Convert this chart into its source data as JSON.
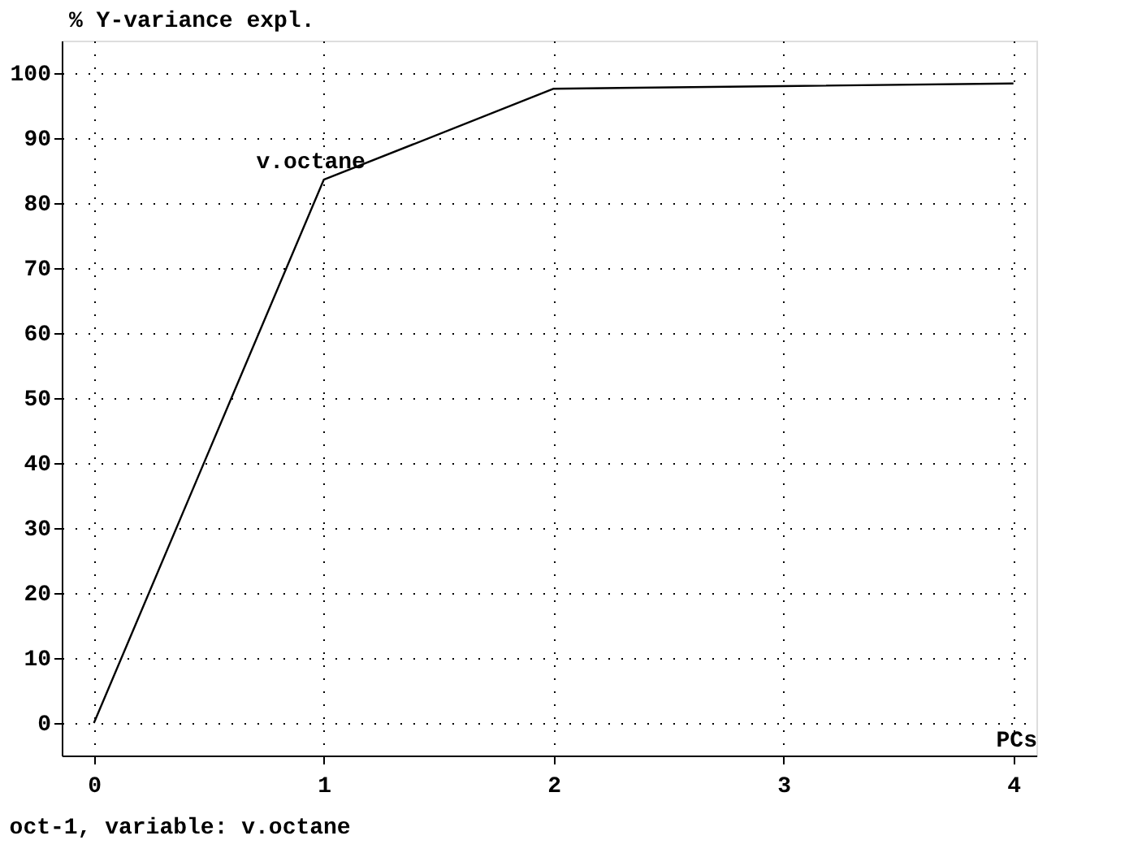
{
  "chart_data": {
    "type": "line",
    "ylabel": "% Y-variance expl.",
    "xlabel": "PCs",
    "x": [
      0,
      1,
      2,
      3,
      4
    ],
    "series": [
      {
        "color": "#000000",
        "values": [
          0,
          83.6,
          97.6,
          98.0,
          98.4
        ]
      }
    ],
    "xlim": [
      -0.14,
      4.1
    ],
    "xticks": [
      0,
      1,
      2,
      3,
      4
    ],
    "ylim": [
      -5,
      105
    ],
    "yticks": [
      0,
      10,
      20,
      30,
      40,
      50,
      60,
      70,
      80,
      90,
      100
    ],
    "grid": true,
    "marker": "none",
    "line_style": "solid",
    "legend": false,
    "annotations": [
      {
        "text": "v.octane",
        "x": 1,
        "y": 83.6
      },
      "oct-1, variable: v.octane"
    ]
  }
}
